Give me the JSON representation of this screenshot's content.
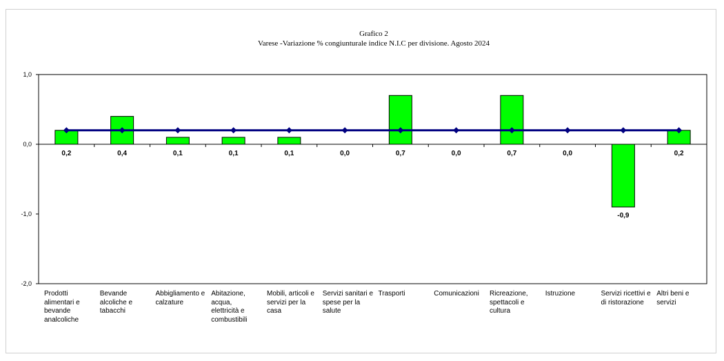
{
  "chart_data": {
    "type": "bar",
    "title": "Grafico 2",
    "subtitle": "Varese -Variazione % congiunturale indice N.I.C per divisione. Agosto 2024",
    "xlabel": "",
    "ylabel": "",
    "ylim": [
      -2.0,
      1.0
    ],
    "yticks": [
      "1,0",
      "0,0",
      "-1,0",
      "-2,0"
    ],
    "ytick_values": [
      1.0,
      0.0,
      -1.0,
      -2.0
    ],
    "grid": false,
    "categories": [
      "Prodotti\nalimentari e\nbevande\nanalcoliche",
      "Bevande\nalcoliche e\ntabacchi",
      "Abbigliamento e\ncalzature",
      "Abitazione,\nacqua,\nelettricità e\ncombustibili",
      "Mobili, articoli e\nservizi per la\ncasa",
      "Servizi sanitari e\nspese per la\nsalute",
      "Trasporti",
      "Comunicazioni",
      "Ricreazione,\nspettacoli e\ncultura",
      "Istruzione",
      "Servizi ricettivi e\ndi ristorazione",
      "Altri beni e\nservizi"
    ],
    "values": [
      0.2,
      0.4,
      0.1,
      0.1,
      0.1,
      0.0,
      0.7,
      0.0,
      0.7,
      0.0,
      -0.9,
      0.2
    ],
    "data_labels": [
      "0,2",
      "0,4",
      "0,1",
      "0,1",
      "0,1",
      "0,0",
      "0,7",
      "0,0",
      "0,7",
      "0,0",
      "-0,9",
      "0,2"
    ],
    "line_values": [
      0.2,
      0.2,
      0.2,
      0.2,
      0.2,
      0.2,
      0.2,
      0.2,
      0.2,
      0.2,
      0.2,
      0.2
    ],
    "bar_color": "#00ff00",
    "bar_stroke": "#000000",
    "line_color": "#000080"
  }
}
